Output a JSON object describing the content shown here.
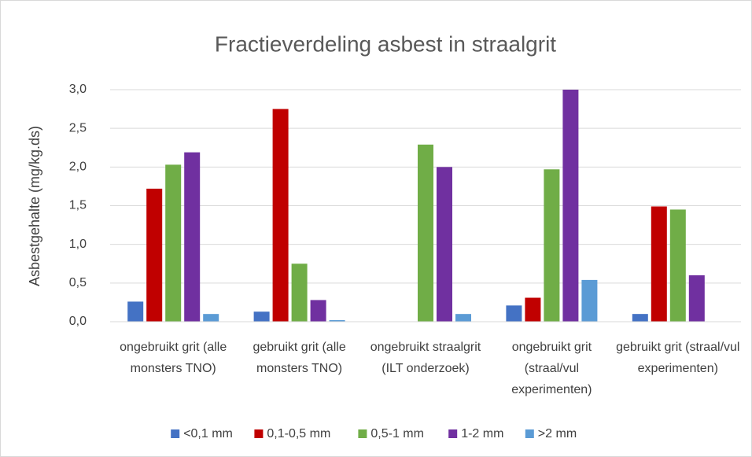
{
  "chart_data": {
    "type": "bar",
    "title": "Fractieverdeling asbest in straalgrit",
    "y_label": "Asbestgehalte (mg/kg.ds)",
    "categories": [
      "ongebruikt grit (alle monsters TNO)",
      "gebruikt grit (alle monsters TNO)",
      "ongebruikt straalgrit (ILT onderzoek)",
      "ongebruikt grit (straal/vul experimenten)",
      "gebruikt grit (straal/vul experimenten)"
    ],
    "series": [
      {
        "name": "<0,1 mm",
        "color": "#4472c4",
        "values": [
          0.26,
          0.13,
          null,
          0.21,
          0.1
        ]
      },
      {
        "name": "0,1-0,5 mm",
        "color": "#c00000",
        "values": [
          1.72,
          2.75,
          null,
          0.31,
          1.49
        ]
      },
      {
        "name": "0,5-1 mm",
        "color": "#70ad47",
        "values": [
          2.03,
          0.75,
          2.29,
          1.97,
          1.45
        ]
      },
      {
        "name": "1-2 mm",
        "color": "#7030a0",
        "values": [
          2.19,
          0.28,
          2.0,
          3.0,
          0.6
        ]
      },
      {
        "name": ">2 mm",
        "color": "#5b9bd5",
        "values": [
          0.1,
          0.02,
          0.1,
          0.54,
          null
        ]
      }
    ],
    "ylim": [
      0,
      3
    ],
    "yticks": [
      {
        "value": 0,
        "label": "0,0"
      },
      {
        "value": 0.5,
        "label": "0,5"
      },
      {
        "value": 1,
        "label": "1,0"
      },
      {
        "value": 1.5,
        "label": "1,5"
      },
      {
        "value": 2,
        "label": "2,0"
      },
      {
        "value": 2.5,
        "label": "2,5"
      },
      {
        "value": 3,
        "label": "3,0"
      }
    ],
    "grid": true,
    "legend": "bottom"
  }
}
